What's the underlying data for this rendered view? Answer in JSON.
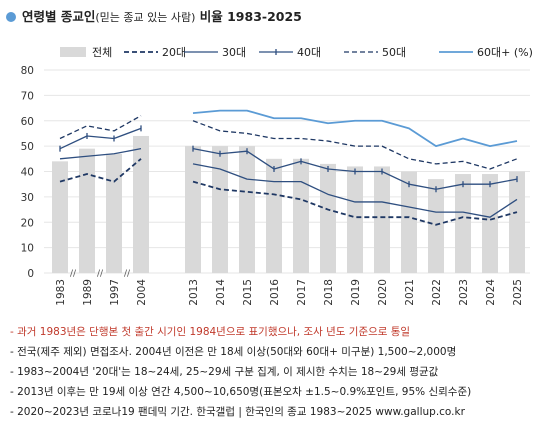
{
  "title": {
    "main": "연령별 종교인",
    "sub": "(믿는 종교 있는 사람)",
    "rest": " 비율 1983-2025"
  },
  "legend": [
    "전체",
    "20대",
    "30대",
    "40대",
    "50대",
    "60대+ (%)"
  ],
  "chart_data": {
    "type": "bar+line",
    "categories": [
      "1983",
      "1989",
      "1997",
      "2004",
      "2013",
      "2014",
      "2015",
      "2016",
      "2017",
      "2018",
      "2019",
      "2020",
      "2021",
      "2022",
      "2023",
      "2024",
      "2025"
    ],
    "y_ticks": [
      0,
      10,
      20,
      30,
      40,
      50,
      60,
      70,
      80
    ],
    "ylim": [
      0,
      80
    ],
    "grid": true,
    "bars": {
      "name": "전체",
      "values": [
        44,
        49,
        47,
        54,
        50,
        50,
        50,
        45,
        45,
        43,
        42,
        42,
        40,
        37,
        39,
        39,
        40
      ],
      "color": "#d9d9d9"
    },
    "series": [
      {
        "name": "20대",
        "values": [
          36,
          39,
          36,
          45,
          36,
          33,
          32,
          31,
          29,
          25,
          22,
          22,
          22,
          19,
          22,
          21,
          24
        ],
        "color": "#1f3864",
        "style": "dashed",
        "width": 1.8
      },
      {
        "name": "30대",
        "values": [
          45,
          46,
          47,
          49,
          43,
          41,
          37,
          36,
          36,
          31,
          28,
          28,
          26,
          24,
          24,
          22,
          29
        ],
        "color": "#2f4f80",
        "style": "solid",
        "width": 1.3
      },
      {
        "name": "40대",
        "values": [
          49,
          54,
          53,
          57,
          49,
          47,
          48,
          41,
          44,
          41,
          40,
          40,
          35,
          33,
          35,
          35,
          37
        ],
        "color": "#2f4f80",
        "style": "solid-marker",
        "width": 1.3
      },
      {
        "name": "50대",
        "values": [
          53,
          58,
          56,
          62,
          60,
          56,
          55,
          53,
          53,
          52,
          50,
          50,
          45,
          43,
          44,
          41,
          45
        ],
        "color": "#1f3864",
        "style": "dashed",
        "width": 1.3
      },
      {
        "name": "60대+ (%)",
        "values": [
          null,
          null,
          null,
          null,
          63,
          64,
          64,
          61,
          61,
          59,
          60,
          60,
          57,
          50,
          53,
          50,
          52
        ],
        "color": "#5b9bd5",
        "style": "solid",
        "width": 1.8
      }
    ]
  },
  "notes": [
    "- 과거 1983년은 단행본 첫 출간 시기인 1984년으로 표기했으나, 조사 년도 기준으로 통일",
    "- 전국(제주 제외) 면접조사. 2004년 이전은 만 18세 이상(50대와 60대+ 미구분) 1,500~2,000명",
    "- 1983~2004년 '20대'는 18~24세, 25~29세 구분 집계, 이 제시한 수치는 18~29세 평균값",
    "- 2013년 이후는 만 19세 이상 연간 4,500~10,650명(표본오차 ±1.5~0.9%포인트, 95% 신뢰수준)",
    "- 2020~2023년 코로나19 팬데믹 기간. 한국갤럽 | 한국인의 종교 1983~2025 www.gallup.co.kr"
  ]
}
